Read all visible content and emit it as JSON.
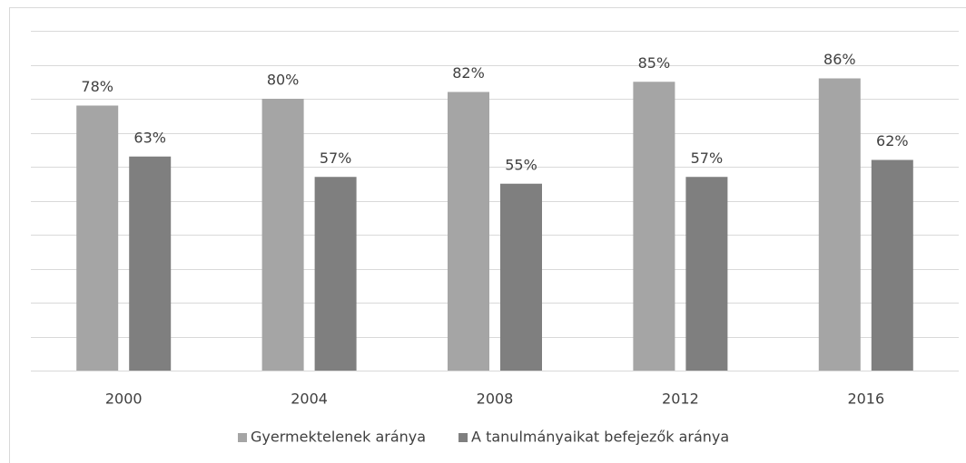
{
  "chart_data": {
    "type": "bar",
    "categories": [
      "2000",
      "2004",
      "2008",
      "2012",
      "2016"
    ],
    "series": [
      {
        "name": "Gyermektelenek aránya",
        "color": "#a5a5a5",
        "values": [
          78,
          80,
          82,
          85,
          86
        ],
        "value_labels": [
          "78%",
          "80%",
          "82%",
          "85%",
          "86%"
        ]
      },
      {
        "name": "A tanulmányaikat befejezők aránya",
        "color": "#7f7f7f",
        "values": [
          63,
          57,
          55,
          57,
          62
        ],
        "value_labels": [
          "63%",
          "57%",
          "55%",
          "57%",
          "62%"
        ]
      }
    ],
    "ylim": [
      0,
      100
    ],
    "yticks": [
      0,
      10,
      20,
      30,
      40,
      50,
      60,
      70,
      80,
      90,
      100
    ],
    "grid": true,
    "legend": "bottom"
  }
}
